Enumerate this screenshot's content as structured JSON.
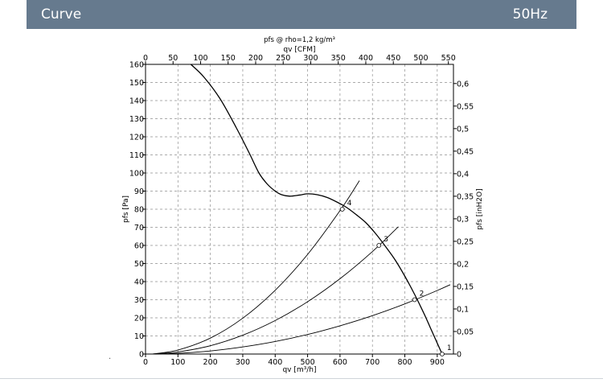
{
  "header": {
    "title": "Curve",
    "frequency": "50Hz",
    "background": "#667a8e"
  },
  "chart_data": {
    "type": "line",
    "title": "pfs @ rho=1,2 kg/m³",
    "xlabel": "qv [m³/h]",
    "x2label": "qv [CFM]",
    "ylabel": "pfs [Pa]",
    "y2label": "pfs [inH2O]",
    "xlim": [
      0,
      950
    ],
    "ylim": [
      0,
      160
    ],
    "x2lim": [
      0,
      559.2
    ],
    "y2lim": [
      0,
      0.6425
    ],
    "xticks": [
      "0",
      "100",
      "200",
      "300",
      "400",
      "500",
      "600",
      "700",
      "800",
      "900"
    ],
    "x2ticks": [
      "0",
      "50",
      "100",
      "150",
      "200",
      "250",
      "300",
      "350",
      "400",
      "450",
      "500",
      "550"
    ],
    "yticks": [
      "0",
      "10",
      "20",
      "30",
      "40",
      "50",
      "60",
      "70",
      "80",
      "90",
      "100",
      "110",
      "120",
      "130",
      "140",
      "150",
      "160"
    ],
    "y2ticks": [
      "0",
      "0,05",
      "0,1",
      "0,15",
      "0,2",
      "0,25",
      "0,3",
      "0,35",
      "0,4",
      "0,45",
      "0,5",
      "0,55",
      "0,6"
    ],
    "grid": true,
    "series": [
      {
        "x": [
          140,
          180,
          230,
          280,
          320,
          350,
          375,
          400,
          420,
          445,
          475,
          500,
          530,
          560,
          590,
          620,
          650,
          680,
          710,
          740,
          770,
          800,
          830,
          860,
          880,
          900,
          915
        ],
        "y": [
          160,
          153,
          141,
          125,
          111,
          100,
          94,
          90,
          88,
          87.2,
          87.8,
          88.5,
          88,
          86.5,
          84,
          81,
          77,
          72.5,
          66.5,
          59.5,
          52,
          43,
          33,
          22,
          14,
          6,
          0
        ]
      },
      {
        "x": [
          20,
          100,
          200,
          300,
          400,
          500,
          600,
          700,
          800,
          900,
          940
        ],
        "y": [
          0,
          0.4,
          1.7,
          3.9,
          6.9,
          10.8,
          15.6,
          21.2,
          27.7,
          35.1,
          38.3
        ]
      },
      {
        "x": [
          20,
          100,
          200,
          300,
          400,
          500,
          600,
          700,
          780
        ],
        "y": [
          0,
          1.15,
          4.6,
          10.4,
          18.5,
          28.9,
          41.6,
          56.6,
          70.3
        ]
      },
      {
        "x": [
          20,
          100,
          200,
          300,
          400,
          500,
          600,
          660
        ],
        "y": [
          0,
          2.2,
          8.8,
          19.8,
          35.2,
          55.0,
          79.2,
          95.8
        ]
      }
    ],
    "points": [
      {
        "label": "1",
        "x": 915,
        "y": 0
      },
      {
        "label": "2",
        "x": 830,
        "y": 30
      },
      {
        "label": "3",
        "x": 720,
        "y": 60
      },
      {
        "label": "4",
        "x": 607,
        "y": 80
      }
    ]
  }
}
